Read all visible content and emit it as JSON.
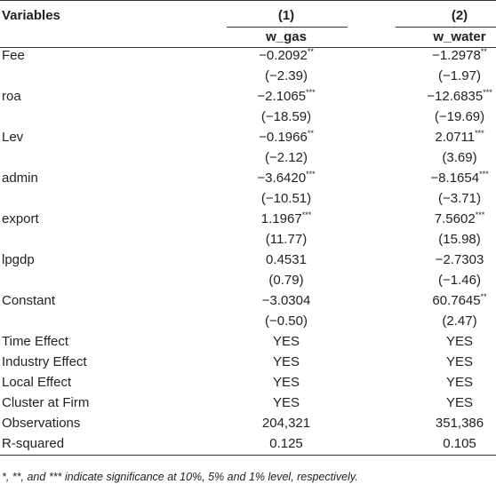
{
  "header": {
    "variables": "Variables",
    "columns": [
      {
        "number": "(1)",
        "name": "w_gas"
      },
      {
        "number": "(2)",
        "name": "w_water"
      }
    ]
  },
  "rows": [
    {
      "label": "Fee",
      "coef": [
        "−0.2092**",
        "−1.2978**"
      ],
      "t": [
        "(−2.39)",
        "(−1.97)"
      ]
    },
    {
      "label": "roa",
      "coef": [
        "−2.1065***",
        "−12.6835***"
      ],
      "t": [
        "(−18.59)",
        "(−19.69)"
      ]
    },
    {
      "label": "Lev",
      "coef": [
        "−0.1966**",
        "2.0711***"
      ],
      "t": [
        "(−2.12)",
        "(3.69)"
      ]
    },
    {
      "label": "admin",
      "coef": [
        "−3.6420***",
        "−8.1654***"
      ],
      "t": [
        "(−10.51)",
        "(−3.71)"
      ]
    },
    {
      "label": "export",
      "coef": [
        "1.1967***",
        "7.5602***"
      ],
      "t": [
        "(11.77)",
        "(15.98)"
      ]
    },
    {
      "label": "lpgdp",
      "coef": [
        "0.4531",
        "−2.7303"
      ],
      "t": [
        "(0.79)",
        "(−1.46)"
      ]
    },
    {
      "label": "Constant",
      "coef": [
        "−3.0304",
        "60.7645**"
      ],
      "t": [
        "(−0.50)",
        "(2.47)"
      ]
    },
    {
      "label": "Time Effect",
      "coef": [
        "YES",
        "YES"
      ]
    },
    {
      "label": "Industry Effect",
      "coef": [
        "YES",
        "YES"
      ]
    },
    {
      "label": "Local Effect",
      "coef": [
        "YES",
        "YES"
      ]
    },
    {
      "label": "Cluster at Firm",
      "coef": [
        "YES",
        "YES"
      ]
    },
    {
      "label": "Observations",
      "coef": [
        "204,321",
        "351,386"
      ]
    },
    {
      "label": "R-squared",
      "coef": [
        "0.125",
        "0.105"
      ]
    }
  ],
  "footnote": "*, **, and *** indicate significance at 10%, 5% and 1% level, respectively."
}
